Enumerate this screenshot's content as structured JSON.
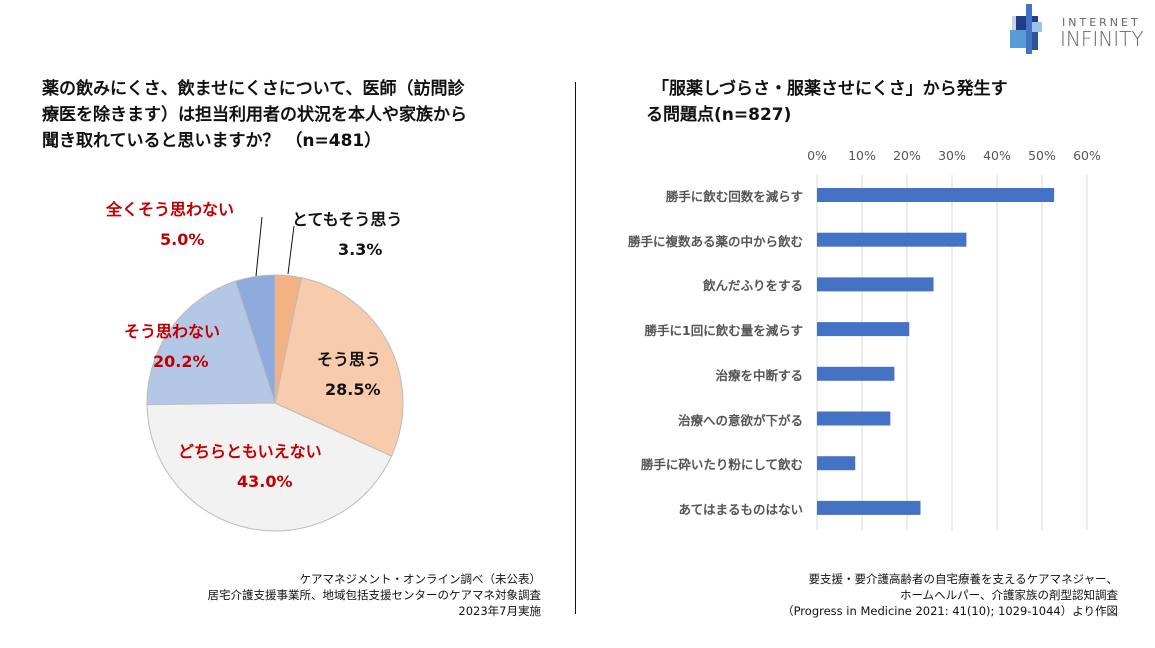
{
  "logo": {
    "line1": "INTERNET",
    "line2": "INFINITY"
  },
  "chart_data": [
    {
      "type": "pie",
      "title": "薬の飲みにくさ、飲ませにくさについて、医師（訪問診療医を除きます）は担当利用者の状況を本人や家族から聞き取れていると思いますか？ （n=481）",
      "title_lines": [
        "薬の飲みにくさ、飲ませにくさについて、医師（訪問診",
        "療医を除きます）は担当利用者の状況を本人や家族から",
        "聞き取れていると思いますか？ （n=481）"
      ],
      "slices": [
        {
          "label": "とてもそう思う",
          "value": 3.3,
          "value_label": "3.3%",
          "color": "#F4B183",
          "label_color": "#111111"
        },
        {
          "label": "そう思う",
          "value": 28.5,
          "value_label": "28.5%",
          "color": "#F8CBAD",
          "label_color": "#111111"
        },
        {
          "label": "どちらともいえない",
          "value": 43.0,
          "value_label": "43.0%",
          "color": "#F2F2F2",
          "label_color": "#C00000"
        },
        {
          "label": "そう思わない",
          "value": 20.2,
          "value_label": "20.2%",
          "color": "#B4C7E7",
          "label_color": "#C00000"
        },
        {
          "label": "全くそう思わない",
          "value": 5.0,
          "value_label": "5.0%",
          "color": "#8FAADC",
          "label_color": "#C00000"
        }
      ],
      "source": [
        "ケアマネジメント・オンライン調べ（未公表）",
        "居宅介護支援事業所、地域包括支援センターのケアマネ対象調査",
        "2023年7月実施"
      ]
    },
    {
      "type": "bar",
      "orientation": "horizontal",
      "title": "「服薬しづらさ・服薬させにくさ」から発生する問題点(n=827)",
      "title_lines": [
        "「服薬しづらさ・服薬させにくさ」から発生す",
        "る問題点(n=827)"
      ],
      "categories": [
        "勝手に飲む回数を減らす",
        "勝手に複数ある薬の中から飲む",
        "飲んだふりをする",
        "勝手に1回に飲む量を減らす",
        "治療を中断する",
        "治療への意欲が下がる",
        "勝手に砕いたり粉にして飲む",
        "あてはまるものはない"
      ],
      "values": [
        52.7,
        33.2,
        25.9,
        20.5,
        17.2,
        16.3,
        8.5,
        23.0
      ],
      "xlim": [
        0,
        60
      ],
      "ticks": [
        "0%",
        "10%",
        "20%",
        "30%",
        "40%",
        "50%",
        "60%"
      ],
      "grid": true,
      "bar_color": "#4472C4",
      "source": [
        "要支援・要介護高齢者の自宅療養を支えるケアマネジャー、",
        "ホームヘルパー、介護家族の剤型認知調査",
        "（Progress in Medicine 2021: 41(10); 1029-1044）より作図"
      ]
    }
  ]
}
